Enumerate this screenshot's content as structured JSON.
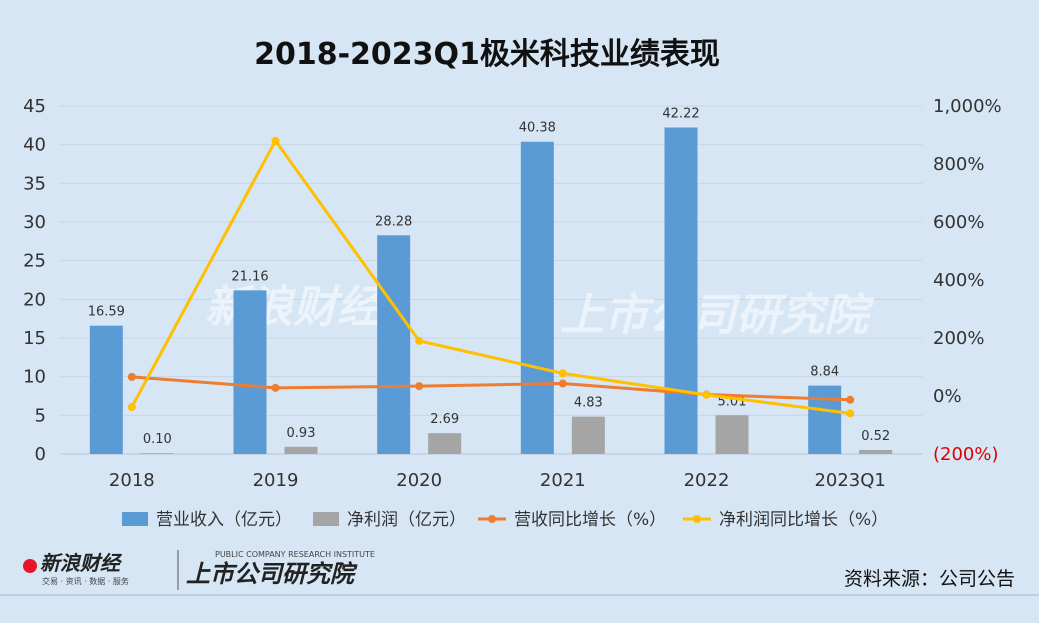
{
  "chart_data": {
    "type": "bar",
    "title": "2018-2023Q1极米科技业绩表现",
    "categories": [
      "2018",
      "2019",
      "2020",
      "2021",
      "2022",
      "2023Q1"
    ],
    "series": [
      {
        "name": "营业收入（亿元）",
        "kind": "bar",
        "axis": "left",
        "color": "#5b9bd5",
        "values": [
          16.59,
          21.16,
          28.28,
          40.38,
          42.22,
          8.84
        ],
        "labels": [
          "16.59",
          "21.16",
          "28.28",
          "40.38",
          "42.22",
          "8.84"
        ]
      },
      {
        "name": "净利润（亿元）",
        "kind": "bar",
        "axis": "left",
        "color": "#a5a5a5",
        "values": [
          0.1,
          0.93,
          2.69,
          4.83,
          5.01,
          0.52
        ],
        "labels": [
          "0.10",
          "0.93",
          "2.69",
          "4.83",
          "5.01",
          "0.52"
        ]
      },
      {
        "name": "营收同比增长（%）",
        "kind": "line",
        "axis": "right",
        "color": "#ed7d31",
        "values": [
          66,
          28,
          34,
          43,
          5,
          -13
        ]
      },
      {
        "name": "净利润同比增长（%）",
        "kind": "line",
        "axis": "right",
        "color": "#ffc000",
        "values": [
          -38,
          880,
          190,
          78,
          4,
          -60
        ]
      }
    ],
    "y_left": {
      "min": 0,
      "max": 45,
      "step": 5,
      "tick_labels": [
        "0",
        "5",
        "10",
        "15",
        "20",
        "25",
        "30",
        "35",
        "40",
        "45"
      ]
    },
    "y_right": {
      "min": -200,
      "max": 1000,
      "step": 200,
      "tick_labels": [
        "(200%)",
        "0%",
        "200%",
        "400%",
        "600%",
        "800%",
        "1,000%"
      ]
    },
    "grid": true,
    "legend_position": "bottom"
  },
  "source": "资料来源：公司公告",
  "logo": {
    "sina": "新浪财经",
    "sina_small": "交易 · 资讯 · 数据 · 服务",
    "institute": "上市公司研究院",
    "institute_small": "PUBLIC COMPANY RESEARCH INSTITUTE"
  },
  "colors": {
    "background": "#d6e6f4",
    "negative_tick": "#e00000"
  }
}
